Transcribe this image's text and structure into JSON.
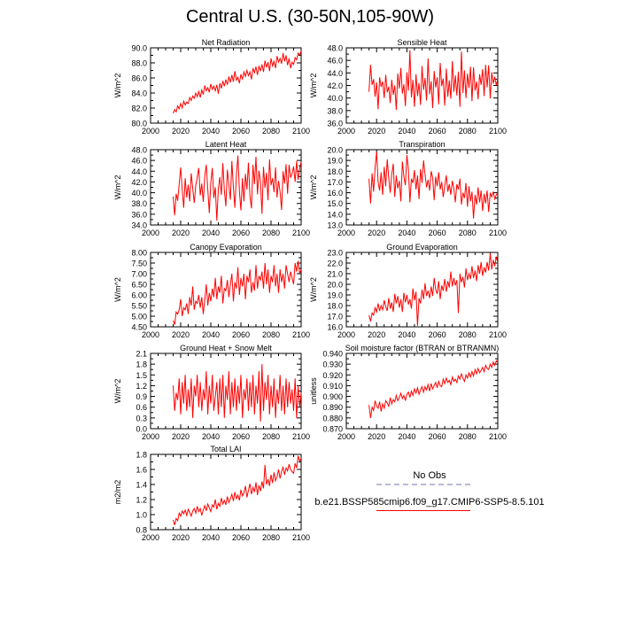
{
  "title": "Central U.S. (30-50N,105-90W)",
  "colors": {
    "model": "#ff0000",
    "obs": "#b9b9d9"
  },
  "legend": {
    "obs_label": "No Obs",
    "model_label": "b.e21.BSSP585cmip6.f09_g17.CMIP6-SSP5-8.5.101"
  },
  "chart_data": [
    {
      "type": "line",
      "title": "Net Radiation",
      "ylabel": "W/m^2",
      "xlim": [
        2000,
        2100
      ],
      "ylim": [
        80,
        90
      ],
      "yticks": [
        "80.0",
        "82.0",
        "84.0",
        "86.0",
        "88.0",
        "90.0"
      ],
      "xticks": [
        "2000",
        "2020",
        "2040",
        "2060",
        "2080",
        "2100"
      ],
      "x_start": 2015,
      "values": [
        81.3,
        81.8,
        81.5,
        82.3,
        81.9,
        82.6,
        82.0,
        82.9,
        82.4,
        82.8,
        82.6,
        83.4,
        83.0,
        83.6,
        83.3,
        84.0,
        83.5,
        84.2,
        83.4,
        84.4,
        83.8,
        85.0,
        84.3,
        84.7,
        84.1,
        85.2,
        84.5,
        84.9,
        84.3,
        85.1,
        83.9,
        85.3,
        84.6,
        85.6,
        84.9,
        85.8,
        85.1,
        86.2,
        85.4,
        86.4,
        85.5,
        86.9,
        85.7,
        86.1,
        85.3,
        86.5,
        85.8,
        86.8,
        86.2,
        87.0,
        86.3,
        86.8,
        85.8,
        87.3,
        86.7,
        87.5,
        86.4,
        87.6,
        86.9,
        87.8,
        86.8,
        88.3,
        87.4,
        88.1,
        86.9,
        88.6,
        87.6,
        88.2,
        87.3,
        88.9,
        88.1,
        88.6,
        87.9,
        89.3,
        88.2,
        89.0,
        87.7,
        88.6,
        87.3,
        88.1,
        87.8,
        88.7,
        88.4,
        89.3,
        89.0,
        89.6
      ]
    },
    {
      "type": "line",
      "title": "Sensible Heat",
      "ylabel": "W/m^2",
      "xlim": [
        2000,
        2100
      ],
      "ylim": [
        36,
        48
      ],
      "yticks": [
        "36.0",
        "38.0",
        "40.0",
        "42.0",
        "44.0",
        "46.0",
        "48.0"
      ],
      "xticks": [
        "2000",
        "2020",
        "2040",
        "2060",
        "2080",
        "2100"
      ],
      "x_start": 2015,
      "values": [
        41.0,
        45.3,
        42.1,
        43.0,
        40.2,
        42.5,
        38.2,
        43.3,
        41.8,
        42.6,
        40.0,
        43.7,
        40.9,
        41.8,
        39.2,
        42.9,
        40.5,
        42.0,
        38.1,
        43.9,
        41.5,
        44.8,
        40.7,
        42.2,
        38.7,
        44.1,
        41.2,
        47.6,
        40.1,
        42.9,
        38.6,
        43.8,
        40.3,
        42.4,
        38.9,
        45.1,
        41.3,
        43.2,
        39.6,
        46.3,
        40.6,
        42.7,
        38.4,
        44.3,
        41.7,
        43.3,
        39.0,
        45.6,
        41.9,
        43.1,
        38.8,
        44.7,
        40.2,
        42.8,
        39.9,
        45.9,
        41.0,
        43.6,
        40.4,
        44.2,
        38.6,
        47.4,
        40.8,
        44.4,
        40.0,
        43.9,
        41.6,
        45.0,
        39.5,
        44.9,
        41.2,
        42.6,
        39.8,
        43.8,
        42.1,
        44.6,
        40.3,
        45.3,
        41.7,
        45.2,
        39.9,
        44.1,
        42.3,
        43.4,
        42.0,
        43.1
      ]
    },
    {
      "type": "line",
      "title": "Latent Heat",
      "ylabel": "W/m^2",
      "xlim": [
        2000,
        2100
      ],
      "ylim": [
        34,
        48
      ],
      "yticks": [
        "34.0",
        "36.0",
        "38.0",
        "40.0",
        "42.0",
        "44.0",
        "46.0",
        "48.0"
      ],
      "xticks": [
        "2000",
        "2020",
        "2040",
        "2060",
        "2080",
        "2100"
      ],
      "x_start": 2015,
      "values": [
        39.3,
        35.8,
        39.8,
        38.5,
        41.6,
        44.7,
        40.6,
        37.2,
        42.7,
        39.1,
        41.5,
        38.4,
        43.6,
        40.8,
        38.1,
        41.3,
        42.9,
        44.6,
        39.5,
        41.7,
        38.3,
        43.1,
        45.2,
        40.6,
        36.2,
        41.9,
        44.6,
        39.0,
        41.0,
        34.8,
        40.7,
        42.9,
        39.6,
        45.5,
        40.4,
        37.5,
        44.3,
        41.5,
        38.7,
        45.9,
        41.0,
        37.2,
        43.3,
        46.9,
        40.3,
        36.7,
        42.7,
        38.4,
        43.5,
        40.6,
        45.6,
        39.4,
        37.1,
        45.2,
        41.6,
        46.7,
        39.7,
        44.1,
        42.0,
        36.1,
        44.8,
        40.9,
        43.7,
        38.6,
        46.2,
        41.4,
        42.7,
        40.1,
        44.7,
        39.1,
        42.2,
        40.2,
        36.8,
        44.0,
        41.7,
        45.3,
        39.8,
        45.2,
        42.8,
        43.6,
        44.9,
        42.0,
        45.9,
        42.4,
        44.5,
        45.7
      ]
    },
    {
      "type": "line",
      "title": "Transpiration",
      "ylabel": "W/m^2",
      "xlim": [
        2000,
        2100
      ],
      "ylim": [
        13,
        20
      ],
      "yticks": [
        "13.0",
        "14.0",
        "15.0",
        "16.0",
        "17.0",
        "18.0",
        "19.0",
        "20.0"
      ],
      "xticks": [
        "2000",
        "2020",
        "2040",
        "2060",
        "2080",
        "2100"
      ],
      "x_start": 2015,
      "values": [
        17.3,
        15.0,
        17.8,
        16.1,
        18.3,
        19.8,
        17.0,
        16.2,
        17.9,
        15.8,
        18.4,
        16.6,
        19.1,
        17.4,
        16.0,
        17.7,
        18.7,
        15.6,
        17.6,
        16.4,
        17.1,
        15.2,
        18.9,
        17.5,
        16.7,
        19.5,
        18.2,
        15.1,
        17.3,
        16.9,
        18.1,
        16.3,
        17.6,
        15.4,
        18.2,
        16.9,
        19.0,
        17.7,
        16.5,
        17.2,
        16.2,
        18.0,
        17.4,
        15.3,
        17.5,
        16.6,
        17.9,
        16.3,
        17.0,
        15.6,
        16.6,
        17.6,
        16.1,
        16.8,
        15.8,
        17.1,
        16.4,
        15.1,
        16.8,
        16.3,
        17.3,
        14.9,
        16.0,
        15.5,
        16.9,
        14.7,
        16.6,
        15.2,
        16.1,
        13.6,
        15.8,
        14.9,
        16.5,
        15.1,
        16.2,
        14.3,
        15.9,
        15.0,
        16.2,
        14.2,
        16.0,
        15.6,
        16.1,
        15.4,
        15.8,
        16.0
      ]
    },
    {
      "type": "line",
      "title": "Canopy Evaporation",
      "ylabel": "W/m^2",
      "xlim": [
        2000,
        2100
      ],
      "ylim": [
        4.5,
        8.0
      ],
      "yticks": [
        "4.50",
        "5.00",
        "5.50",
        "6.00",
        "6.50",
        "7.00",
        "7.50",
        "8.00"
      ],
      "xticks": [
        "2000",
        "2020",
        "2040",
        "2060",
        "2080",
        "2100"
      ],
      "x_start": 2015,
      "values": [
        4.8,
        4.6,
        5.2,
        5.1,
        5.3,
        5.8,
        5.0,
        5.4,
        5.3,
        5.6,
        5.1,
        5.9,
        5.5,
        6.4,
        5.3,
        5.7,
        5.6,
        6.0,
        5.4,
        5.9,
        5.1,
        5.8,
        6.5,
        5.5,
        6.1,
        5.7,
        6.3,
        5.9,
        6.8,
        5.8,
        6.4,
        6.1,
        6.9,
        5.6,
        6.3,
        6.2,
        6.7,
        5.9,
        6.5,
        7.0,
        5.7,
        6.6,
        6.3,
        7.3,
        6.0,
        6.8,
        6.4,
        7.0,
        5.8,
        6.9,
        6.6,
        7.2,
        6.1,
        6.6,
        6.2,
        7.4,
        6.3,
        6.9,
        6.7,
        7.1,
        6.3,
        7.5,
        6.5,
        7.2,
        6.1,
        6.9,
        6.6,
        7.4,
        6.4,
        7.0,
        6.1,
        7.2,
        6.6,
        7.0,
        6.3,
        7.4,
        7.0,
        6.6,
        7.1,
        6.8,
        6.5,
        7.5,
        7.1,
        7.6,
        7.0,
        7.2
      ]
    },
    {
      "type": "line",
      "title": "Ground Evaporation",
      "ylabel": "W/m^2",
      "xlim": [
        2000,
        2100
      ],
      "ylim": [
        16,
        23
      ],
      "yticks": [
        "16.0",
        "17.0",
        "18.0",
        "19.0",
        "20.0",
        "21.0",
        "22.0",
        "23.0"
      ],
      "xticks": [
        "2000",
        "2020",
        "2040",
        "2060",
        "2080",
        "2100"
      ],
      "x_start": 2015,
      "values": [
        17.1,
        16.5,
        17.3,
        17.1,
        17.8,
        17.4,
        18.2,
        17.5,
        18.0,
        17.6,
        18.5,
        17.9,
        17.5,
        18.7,
        17.7,
        18.3,
        17.4,
        19.1,
        18.2,
        18.9,
        17.8,
        18.6,
        17.4,
        19.2,
        18.3,
        19.0,
        18.1,
        18.6,
        17.7,
        19.6,
        18.5,
        19.3,
        16.1,
        18.7,
        18.2,
        19.5,
        18.6,
        20.1,
        18.9,
        19.4,
        18.7,
        19.8,
        18.9,
        20.6,
        19.5,
        19.1,
        20.3,
        18.6,
        19.9,
        19.4,
        20.5,
        19.3,
        20.3,
        19.7,
        21.2,
        19.8,
        20.6,
        19.9,
        20.4,
        17.3,
        21.0,
        20.2,
        20.7,
        19.7,
        21.5,
        20.4,
        21.0,
        20.5,
        21.7,
        20.6,
        21.3,
        20.3,
        21.8,
        21.0,
        22.1,
        20.8,
        21.6,
        21.1,
        22.1,
        21.3,
        22.9,
        21.4,
        22.3,
        21.7,
        22.6,
        22.0
      ]
    },
    {
      "type": "line",
      "title": "Ground Heat + Snow Melt",
      "ylabel": "W/m^2",
      "xlim": [
        2000,
        2100
      ],
      "ylim": [
        0.0,
        2.1
      ],
      "yticks": [
        "0.0",
        "0.3",
        "0.6",
        "0.9",
        "1.2",
        "1.5",
        "1.8",
        "2.1"
      ],
      "xticks": [
        "2000",
        "2020",
        "2040",
        "2060",
        "2080",
        "2100"
      ],
      "x_start": 2015,
      "values": [
        1.2,
        0.5,
        1.0,
        0.8,
        1.4,
        0.4,
        1.3,
        0.7,
        1.5,
        0.5,
        1.1,
        0.6,
        1.4,
        0.3,
        1.2,
        0.9,
        1.5,
        0.6,
        1.3,
        0.5,
        1.1,
        0.8,
        1.6,
        0.4,
        1.2,
        0.7,
        1.5,
        0.5,
        0.9,
        1.3,
        0.4,
        1.4,
        0.6,
        1.5,
        0.3,
        1.2,
        0.8,
        1.6,
        0.4,
        1.3,
        0.6,
        1.4,
        0.5,
        1.2,
        0.7,
        1.5,
        0.3,
        1.1,
        0.8,
        1.4,
        0.5,
        1.3,
        0.6,
        1.5,
        0.4,
        1.2,
        0.7,
        1.6,
        0.2,
        1.8,
        0.5,
        1.3,
        0.8,
        1.5,
        0.4,
        1.2,
        0.6,
        1.4,
        0.3,
        1.1,
        0.7,
        1.5,
        0.5,
        1.2,
        0.4,
        1.4,
        0.6,
        1.3,
        0.7,
        1.1,
        0.5,
        1.4,
        0.3,
        1.2,
        0.6,
        1.0
      ]
    },
    {
      "type": "line",
      "title": "Soil moisture factor (BTRAN or BTRANMN)",
      "ylabel": "unitless",
      "xlim": [
        2000,
        2100
      ],
      "ylim": [
        0.87,
        0.94
      ],
      "yticks": [
        "0.870",
        "0.880",
        "0.890",
        "0.900",
        "0.910",
        "0.920",
        "0.930",
        "0.940"
      ],
      "xticks": [
        "2000",
        "2020",
        "2040",
        "2060",
        "2080",
        "2100"
      ],
      "x_start": 2015,
      "values": [
        0.892,
        0.88,
        0.89,
        0.887,
        0.896,
        0.891,
        0.889,
        0.895,
        0.886,
        0.893,
        0.889,
        0.896,
        0.894,
        0.891,
        0.899,
        0.893,
        0.897,
        0.895,
        0.901,
        0.896,
        0.899,
        0.903,
        0.898,
        0.901,
        0.896,
        0.902,
        0.904,
        0.899,
        0.905,
        0.901,
        0.907,
        0.903,
        0.908,
        0.902,
        0.906,
        0.909,
        0.904,
        0.909,
        0.906,
        0.911,
        0.905,
        0.912,
        0.907,
        0.91,
        0.913,
        0.908,
        0.914,
        0.91,
        0.909,
        0.916,
        0.912,
        0.917,
        0.913,
        0.915,
        0.911,
        0.918,
        0.914,
        0.916,
        0.913,
        0.919,
        0.916,
        0.921,
        0.917,
        0.914,
        0.92,
        0.917,
        0.922,
        0.918,
        0.923,
        0.919,
        0.925,
        0.921,
        0.926,
        0.922,
        0.924,
        0.927,
        0.923,
        0.929,
        0.926,
        0.925,
        0.93,
        0.927,
        0.932,
        0.929,
        0.933,
        0.931
      ]
    },
    {
      "type": "line",
      "title": "Total LAI",
      "ylabel": "m2/m2",
      "xlim": [
        2000,
        2100
      ],
      "ylim": [
        0.8,
        1.8
      ],
      "yticks": [
        "0.8",
        "1.0",
        "1.2",
        "1.4",
        "1.6",
        "1.8"
      ],
      "xticks": [
        "2000",
        "2020",
        "2040",
        "2060",
        "2080",
        "2100"
      ],
      "x_start": 2015,
      "values": [
        0.93,
        0.86,
        0.95,
        0.92,
        1.02,
        0.98,
        1.05,
        1.01,
        1.06,
        0.99,
        1.07,
        1.03,
        0.98,
        1.05,
        1.08,
        1.02,
        1.11,
        1.04,
        1.08,
        0.99,
        1.06,
        1.12,
        1.05,
        1.14,
        1.09,
        1.04,
        1.13,
        1.1,
        1.2,
        1.07,
        1.15,
        1.11,
        1.22,
        1.14,
        1.19,
        1.13,
        1.24,
        1.16,
        1.21,
        1.27,
        1.18,
        1.3,
        1.21,
        1.26,
        1.19,
        1.33,
        1.25,
        1.29,
        1.38,
        1.23,
        1.32,
        1.41,
        1.27,
        1.36,
        1.3,
        1.43,
        1.26,
        1.39,
        1.31,
        1.44,
        1.35,
        1.66,
        1.4,
        1.47,
        1.38,
        1.53,
        1.42,
        1.56,
        1.45,
        1.5,
        1.6,
        1.48,
        1.57,
        1.63,
        1.53,
        1.62,
        1.58,
        1.67,
        1.6,
        1.57,
        1.55,
        1.68,
        1.62,
        1.78,
        1.71,
        1.75
      ]
    }
  ]
}
